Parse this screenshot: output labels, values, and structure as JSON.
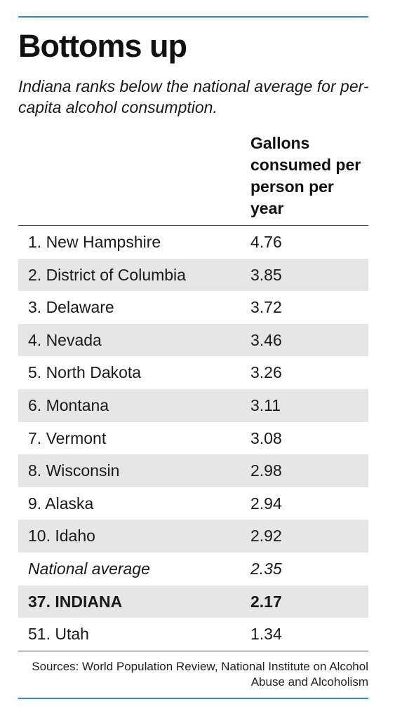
{
  "title": "Bottoms up",
  "subtitle": "Indiana ranks below the national average for per-capita alcohol consumption.",
  "column_header": "Gallons consumed per person per year",
  "source": "Sources: World Population Review, National Institute on Alcohol Abuse and Alcoholism",
  "accent_color": "#2d8fc4",
  "row_shade_color": "#e6e6e6",
  "chart_data": {
    "type": "table",
    "title": "Bottoms up",
    "subtitle": "Indiana ranks below the national average for per-capita alcohol consumption.",
    "columns": [
      "",
      "Gallons consumed per person per year"
    ],
    "rows": [
      {
        "label": "1. New Hampshire",
        "value": "4.76",
        "style": "normal",
        "shaded": false
      },
      {
        "label": "2. District of Columbia",
        "value": "3.85",
        "style": "normal",
        "shaded": true
      },
      {
        "label": "3. Delaware",
        "value": "3.72",
        "style": "normal",
        "shaded": false
      },
      {
        "label": "4. Nevada",
        "value": "3.46",
        "style": "normal",
        "shaded": true
      },
      {
        "label": "5. North Dakota",
        "value": "3.26",
        "style": "normal",
        "shaded": false
      },
      {
        "label": "6. Montana",
        "value": "3.11",
        "style": "normal",
        "shaded": true
      },
      {
        "label": "7. Vermont",
        "value": "3.08",
        "style": "normal",
        "shaded": false
      },
      {
        "label": "8. Wisconsin",
        "value": "2.98",
        "style": "normal",
        "shaded": true
      },
      {
        "label": "9. Alaska",
        "value": "2.94",
        "style": "normal",
        "shaded": false
      },
      {
        "label": "10. Idaho",
        "value": "2.92",
        "style": "normal",
        "shaded": true
      },
      {
        "label": "National average",
        "value": "2.35",
        "style": "italic",
        "shaded": false
      },
      {
        "label": "37. INDIANA",
        "value": "2.17",
        "style": "bold",
        "shaded": true
      },
      {
        "label": "51. Utah",
        "value": "1.34",
        "style": "normal",
        "shaded": false
      }
    ]
  }
}
